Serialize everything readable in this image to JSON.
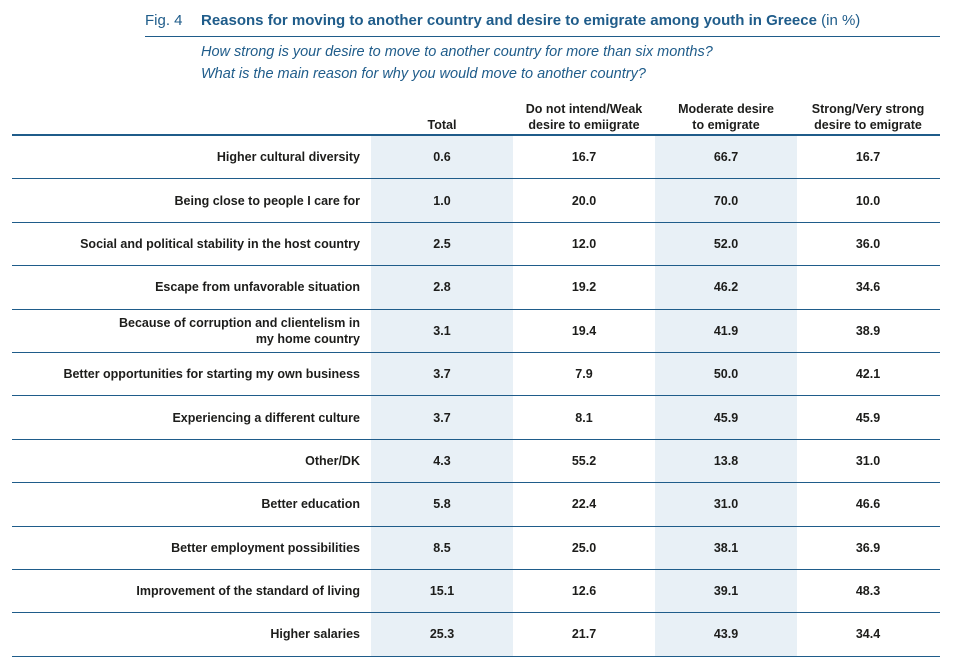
{
  "figure": {
    "number": "Fig. 4",
    "title": "Reasons for moving to another country and desire to emigrate among youth in Greece",
    "unit": "(in %)",
    "subtitle_1": "How strong is your desire to move to another country for more than six months?",
    "subtitle_2": "What is the main reason for why you would move to another country?"
  },
  "colors": {
    "accent": "#1f5c8a",
    "shaded_column": "#e8f0f6",
    "text": "#1d1d1b"
  },
  "chart_data": {
    "type": "table",
    "columns": [
      "Total",
      "Do not intend/Weak\ndesire to emiigrate",
      "Moderate desire\nto emigrate",
      "Strong/Very strong\ndesire to emigrate"
    ],
    "rows": [
      {
        "label": "Higher cultural diversity",
        "values": [
          "0.6",
          "16.7",
          "66.7",
          "16.7"
        ]
      },
      {
        "label": "Being close to people I care for",
        "values": [
          "1.0",
          "20.0",
          "70.0",
          "10.0"
        ]
      },
      {
        "label": "Social and political stability in the host country",
        "values": [
          "2.5",
          "12.0",
          "52.0",
          "36.0"
        ]
      },
      {
        "label": "Escape from unfavorable situation",
        "values": [
          "2.8",
          "19.2",
          "46.2",
          "34.6"
        ]
      },
      {
        "label": "Because of corruption and clientelism in\nmy home country",
        "values": [
          "3.1",
          "19.4",
          "41.9",
          "38.9"
        ]
      },
      {
        "label": "Better opportunities for starting my own business",
        "values": [
          "3.7",
          "7.9",
          "50.0",
          "42.1"
        ]
      },
      {
        "label": "Experiencing a different culture",
        "values": [
          "3.7",
          "8.1",
          "45.9",
          "45.9"
        ]
      },
      {
        "label": "Other/DK",
        "values": [
          "4.3",
          "55.2",
          "13.8",
          "31.0"
        ]
      },
      {
        "label": "Better education",
        "values": [
          "5.8",
          "22.4",
          "31.0",
          "46.6"
        ]
      },
      {
        "label": "Better employment possibilities",
        "values": [
          "8.5",
          "25.0",
          "38.1",
          "36.9"
        ]
      },
      {
        "label": "Improvement of the standard of living",
        "values": [
          "15.1",
          "12.6",
          "39.1",
          "48.3"
        ]
      },
      {
        "label": "Higher salaries",
        "values": [
          "25.3",
          "21.7",
          "43.9",
          "34.4"
        ]
      }
    ]
  }
}
